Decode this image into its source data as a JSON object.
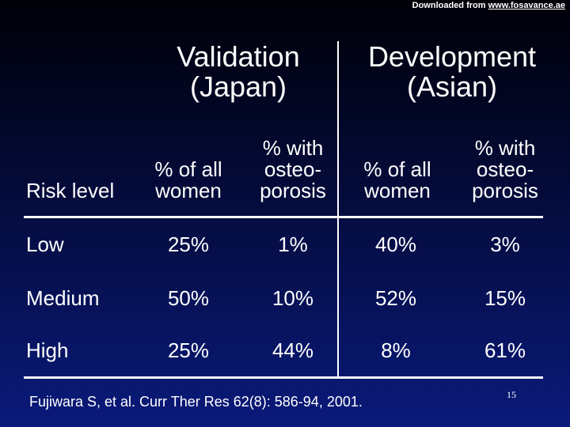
{
  "download_note": {
    "prefix": "Downloaded from ",
    "link": "www.fosavance.ae"
  },
  "groups": [
    {
      "line1": "Validation",
      "line2": "(Japan)"
    },
    {
      "line1": "Development",
      "line2": "(Asian)"
    }
  ],
  "columns": {
    "risk_level": "Risk level",
    "pct_all": {
      "line1": "% of all",
      "line2": "women"
    },
    "pct_osteo": {
      "line1": "% with",
      "line2": "osteo-",
      "line3": "porosis"
    }
  },
  "rows": [
    {
      "label": "Low",
      "values": [
        "25%",
        "1%",
        "40%",
        "3%"
      ]
    },
    {
      "label": "Medium",
      "values": [
        "50%",
        "10%",
        "52%",
        "15%"
      ]
    },
    {
      "label": "High",
      "values": [
        "25%",
        "44%",
        "8%",
        "61%"
      ]
    }
  ],
  "citation": "Fujiwara S, et al. Curr Ther Res 62(8): 586-94, 2001.",
  "page_number": "15"
}
